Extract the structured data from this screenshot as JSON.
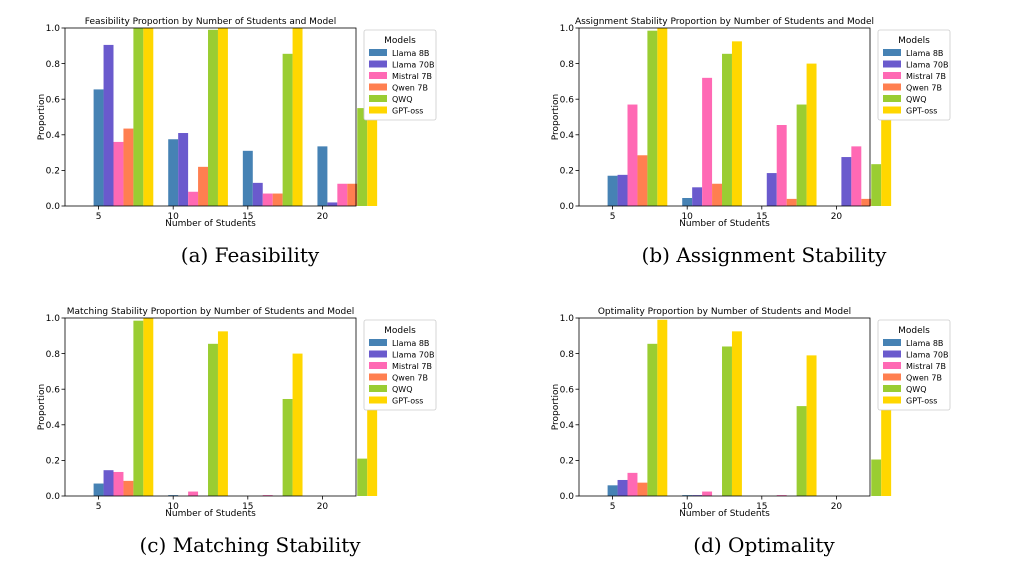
{
  "colors": {
    "Llama 8B": "#4682B4",
    "Llama 70B": "#6A5ACD",
    "Mistral 7B": "#FF69B4",
    "Qwen 7B": "#FF7F50",
    "QWQ": "#9ACD32",
    "GPT-oss": "#FFD700"
  },
  "captions": [
    "(a) Feasibility",
    "(b) Assignment Stability",
    "(c) Matching Stability",
    "(d) Optimality"
  ],
  "chart_data": [
    {
      "type": "bar",
      "title": "Feasibility Proportion by Number of Students and Model",
      "xlabel": "Number of Students",
      "ylabel": "Proportion",
      "ylim": [
        0,
        1.0
      ],
      "yticks": [
        "0.0",
        "0.2",
        "0.4",
        "0.6",
        "0.8",
        "1.0"
      ],
      "categories": [
        "5",
        "10",
        "15",
        "20"
      ],
      "legend_title": "Models",
      "legend_position": "outside-right",
      "series": [
        {
          "name": "Llama 8B",
          "values": [
            0.655,
            0.375,
            0.31,
            0.335
          ]
        },
        {
          "name": "Llama 70B",
          "values": [
            0.905,
            0.41,
            0.13,
            0.02
          ]
        },
        {
          "name": "Mistral 7B",
          "values": [
            0.36,
            0.08,
            0.07,
            0.125
          ]
        },
        {
          "name": "Qwen 7B",
          "values": [
            0.435,
            0.22,
            0.07,
            0.125
          ]
        },
        {
          "name": "QWQ",
          "values": [
            1.0,
            0.99,
            0.855,
            0.55
          ]
        },
        {
          "name": "GPT-oss",
          "values": [
            1.0,
            1.0,
            1.0,
            0.955
          ]
        }
      ]
    },
    {
      "type": "bar",
      "title": "Assignment Stability Proportion by Number of Students and Model",
      "xlabel": "Number of Students",
      "ylabel": "Proportion",
      "ylim": [
        0,
        1.0
      ],
      "yticks": [
        "0.0",
        "0.2",
        "0.4",
        "0.6",
        "0.8",
        "1.0"
      ],
      "categories": [
        "5",
        "10",
        "15",
        "20"
      ],
      "legend_title": "Models",
      "legend_position": "outside-right",
      "series": [
        {
          "name": "Llama 8B",
          "values": [
            0.17,
            0.045,
            0.0,
            0.0
          ]
        },
        {
          "name": "Llama 70B",
          "values": [
            0.175,
            0.105,
            0.185,
            0.275
          ]
        },
        {
          "name": "Mistral 7B",
          "values": [
            0.57,
            0.72,
            0.455,
            0.335
          ]
        },
        {
          "name": "Qwen 7B",
          "values": [
            0.285,
            0.125,
            0.04,
            0.04
          ]
        },
        {
          "name": "QWQ",
          "values": [
            0.985,
            0.855,
            0.57,
            0.235
          ]
        },
        {
          "name": "GPT-oss",
          "values": [
            1.0,
            0.925,
            0.8,
            0.54
          ]
        }
      ]
    },
    {
      "type": "bar",
      "title": "Matching Stability Proportion by Number of Students and Model",
      "xlabel": "Number of Students",
      "ylabel": "Proportion",
      "ylim": [
        0,
        1.0
      ],
      "yticks": [
        "0.0",
        "0.2",
        "0.4",
        "0.6",
        "0.8",
        "1.0"
      ],
      "categories": [
        "5",
        "10",
        "15",
        "20"
      ],
      "legend_title": "Models",
      "legend_position": "outside-right",
      "series": [
        {
          "name": "Llama 8B",
          "values": [
            0.07,
            0.005,
            0.0,
            0.0
          ]
        },
        {
          "name": "Llama 70B",
          "values": [
            0.145,
            0.0,
            0.0,
            0.0
          ]
        },
        {
          "name": "Mistral 7B",
          "values": [
            0.135,
            0.025,
            0.005,
            0.0
          ]
        },
        {
          "name": "Qwen 7B",
          "values": [
            0.085,
            0.0,
            0.0,
            0.0
          ]
        },
        {
          "name": "QWQ",
          "values": [
            0.985,
            0.855,
            0.545,
            0.21
          ]
        },
        {
          "name": "GPT-oss",
          "values": [
            1.0,
            0.925,
            0.8,
            0.515
          ]
        }
      ]
    },
    {
      "type": "bar",
      "title": "Optimality Proportion by Number of Students and Model",
      "xlabel": "Number of Students",
      "ylabel": "Proportion",
      "ylim": [
        0,
        1.0
      ],
      "yticks": [
        "0.0",
        "0.2",
        "0.4",
        "0.6",
        "0.8",
        "1.0"
      ],
      "categories": [
        "5",
        "10",
        "15",
        "20"
      ],
      "legend_title": "Models",
      "legend_position": "outside-right",
      "series": [
        {
          "name": "Llama 8B",
          "values": [
            0.06,
            0.005,
            0.0,
            0.0
          ]
        },
        {
          "name": "Llama 70B",
          "values": [
            0.09,
            0.005,
            0.0,
            0.0
          ]
        },
        {
          "name": "Mistral 7B",
          "values": [
            0.13,
            0.025,
            0.005,
            0.0
          ]
        },
        {
          "name": "Qwen 7B",
          "values": [
            0.075,
            0.0,
            0.0,
            0.0
          ]
        },
        {
          "name": "QWQ",
          "values": [
            0.855,
            0.84,
            0.505,
            0.205
          ]
        },
        {
          "name": "GPT-oss",
          "values": [
            0.99,
            0.925,
            0.79,
            0.505
          ]
        }
      ]
    }
  ]
}
